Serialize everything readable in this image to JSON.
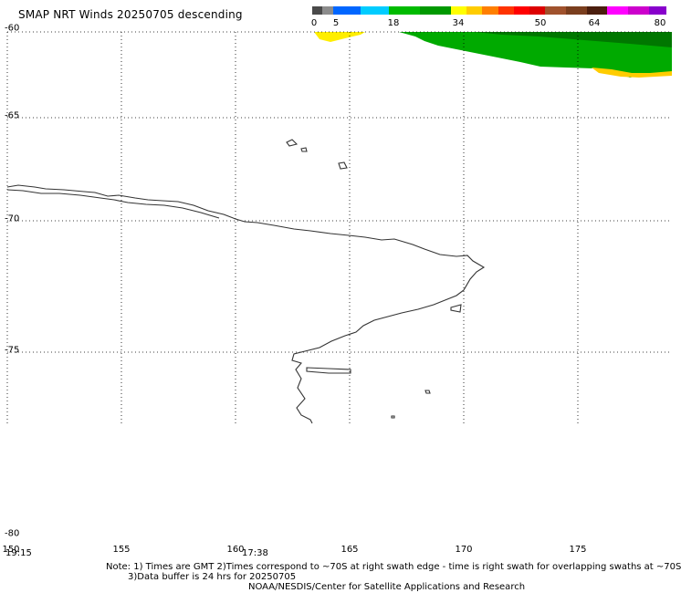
{
  "title": "SMAP NRT Winds  20250705 descending",
  "colorbar": {
    "labels": [
      "0",
      "5",
      "18",
      "34",
      "50",
      "64",
      "80"
    ],
    "segments": [
      "#4a4a4a",
      "#8c8c8c",
      "#0066ff",
      "#00ccff",
      "#00bb00",
      "#009900",
      "#ffff00",
      "#ffcc00",
      "#ff7f00",
      "#ff3300",
      "#ff0000",
      "#dd0000",
      "#a0522d",
      "#7a3e1e",
      "#4b1e0e",
      "#ff00ff",
      "#cc00cc",
      "#8800cc"
    ]
  },
  "map": {
    "lat_labels": [
      "-60",
      "-65",
      "-70",
      "-75",
      "-80"
    ],
    "lon_labels": [
      "150",
      "155",
      "160",
      "165",
      "170",
      "175"
    ],
    "time_labels": [
      "19:15",
      "17:38"
    ],
    "swath_colors": {
      "yellow": "#ffee00",
      "green": "#00aa00",
      "dark_green": "#007700"
    }
  },
  "notes": {
    "line1": "Note: 1) Times are GMT 2)Times correspond to ~70S at right swath edge - time is right swath for overlapping swaths at ~70S",
    "line2": "3)Data buffer is 24 hrs for 20250705",
    "line3": "NOAA/NESDIS/Center for Satellite Applications and Research"
  }
}
